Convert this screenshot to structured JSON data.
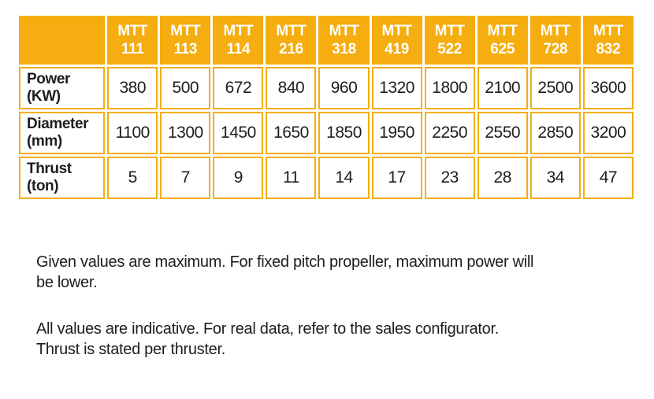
{
  "colors": {
    "accent_orange": "#F5AD0F",
    "header_text": "#FFFFFF",
    "body_text": "#1D1D1B"
  },
  "table": {
    "corner_label": "",
    "columns": [
      "MTT\n111",
      "MTT\n113",
      "MTT\n114",
      "MTT\n216",
      "MTT\n318",
      "MTT\n419",
      "MTT\n522",
      "MTT\n625",
      "MTT\n728",
      "MTT\n832"
    ],
    "rows": [
      {
        "label": "Power\n(KW)",
        "values": [
          "380",
          "500",
          "672",
          "840",
          "960",
          "1320",
          "1800",
          "2100",
          "2500",
          "3600"
        ]
      },
      {
        "label": "Diameter\n(mm)",
        "values": [
          "1100",
          "1300",
          "1450",
          "1650",
          "1850",
          "1950",
          "2250",
          "2550",
          "2850",
          "3200"
        ]
      },
      {
        "label": "Thrust\n(ton)",
        "values": [
          "5",
          "7",
          "9",
          "11",
          "14",
          "17",
          "23",
          "28",
          "34",
          "47"
        ]
      }
    ]
  },
  "notes": [
    {
      "lines": [
        "Given values are maximum. For fixed pitch propeller, maximum power will",
        "be lower."
      ]
    },
    {
      "lines": [
        "All values are indicative. For real data, refer to the sales configurator.",
        "Thrust is stated per thruster."
      ]
    }
  ]
}
